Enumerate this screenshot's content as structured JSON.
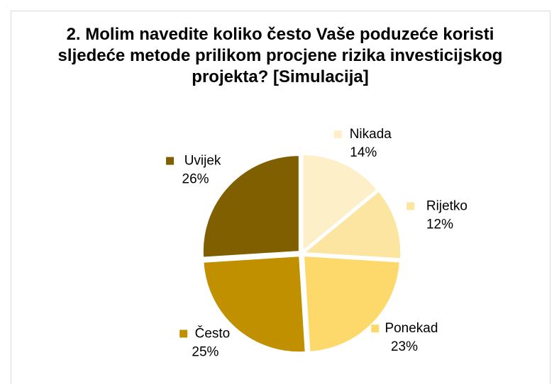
{
  "chart_data": {
    "type": "pie",
    "title": "2. Molim navedite koliko često Vaše poduzeće koristi sljedeće metode prilikom procjene rizika investicijskog projekta? [Simulacija]",
    "categories": [
      "Nikada",
      "Rijetko",
      "Ponekad",
      "Često",
      "Uvijek"
    ],
    "values": [
      14,
      12,
      23,
      25,
      26
    ],
    "value_labels": [
      "14%",
      "12%",
      "23%",
      "25%",
      "26%"
    ],
    "colors": [
      "#fdf0c8",
      "#fce4a1",
      "#fdd86b",
      "#c09000",
      "#7f5f00"
    ]
  }
}
